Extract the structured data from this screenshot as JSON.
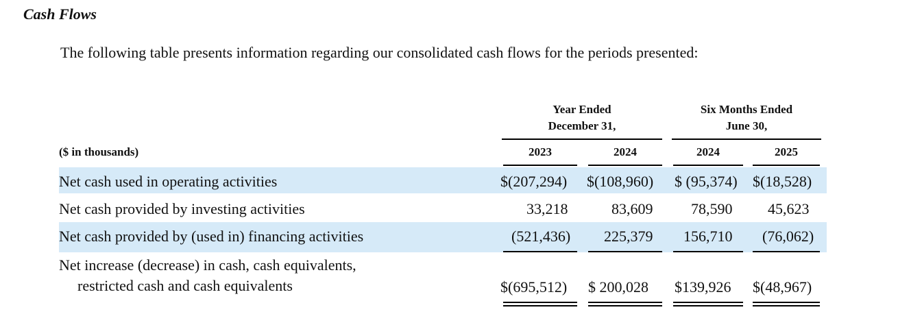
{
  "section_title": "Cash Flows",
  "intro": "The following table presents information regarding our consolidated cash flows for the periods presented:",
  "table": {
    "unit_label": "($ in thousands)",
    "groups": [
      {
        "line1": "Year Ended",
        "line2": "December 31,"
      },
      {
        "line1": "Six Months Ended",
        "line2": "June 30,"
      }
    ],
    "columns": [
      "2023",
      "2024",
      "2024",
      "2025"
    ],
    "rows": [
      {
        "label": "Net cash used in operating activities",
        "values": [
          "$(207,294)",
          "$(108,960)",
          "$ (95,374)",
          "$(18,528)"
        ]
      },
      {
        "label": "Net cash provided by investing activities",
        "values": [
          "33,218",
          "83,609",
          "78,590",
          "45,623"
        ]
      },
      {
        "label": "Net cash provided by (used in) financing activities",
        "values": [
          "(521,436)",
          "225,379",
          "156,710",
          "(76,062)"
        ]
      },
      {
        "label_line1": "Net increase (decrease) in cash, cash equivalents,",
        "label_line2": "restricted cash and cash equivalents",
        "values": [
          "$(695,512)",
          "$ 200,028",
          "$139,926",
          "$(48,967)"
        ]
      }
    ]
  }
}
